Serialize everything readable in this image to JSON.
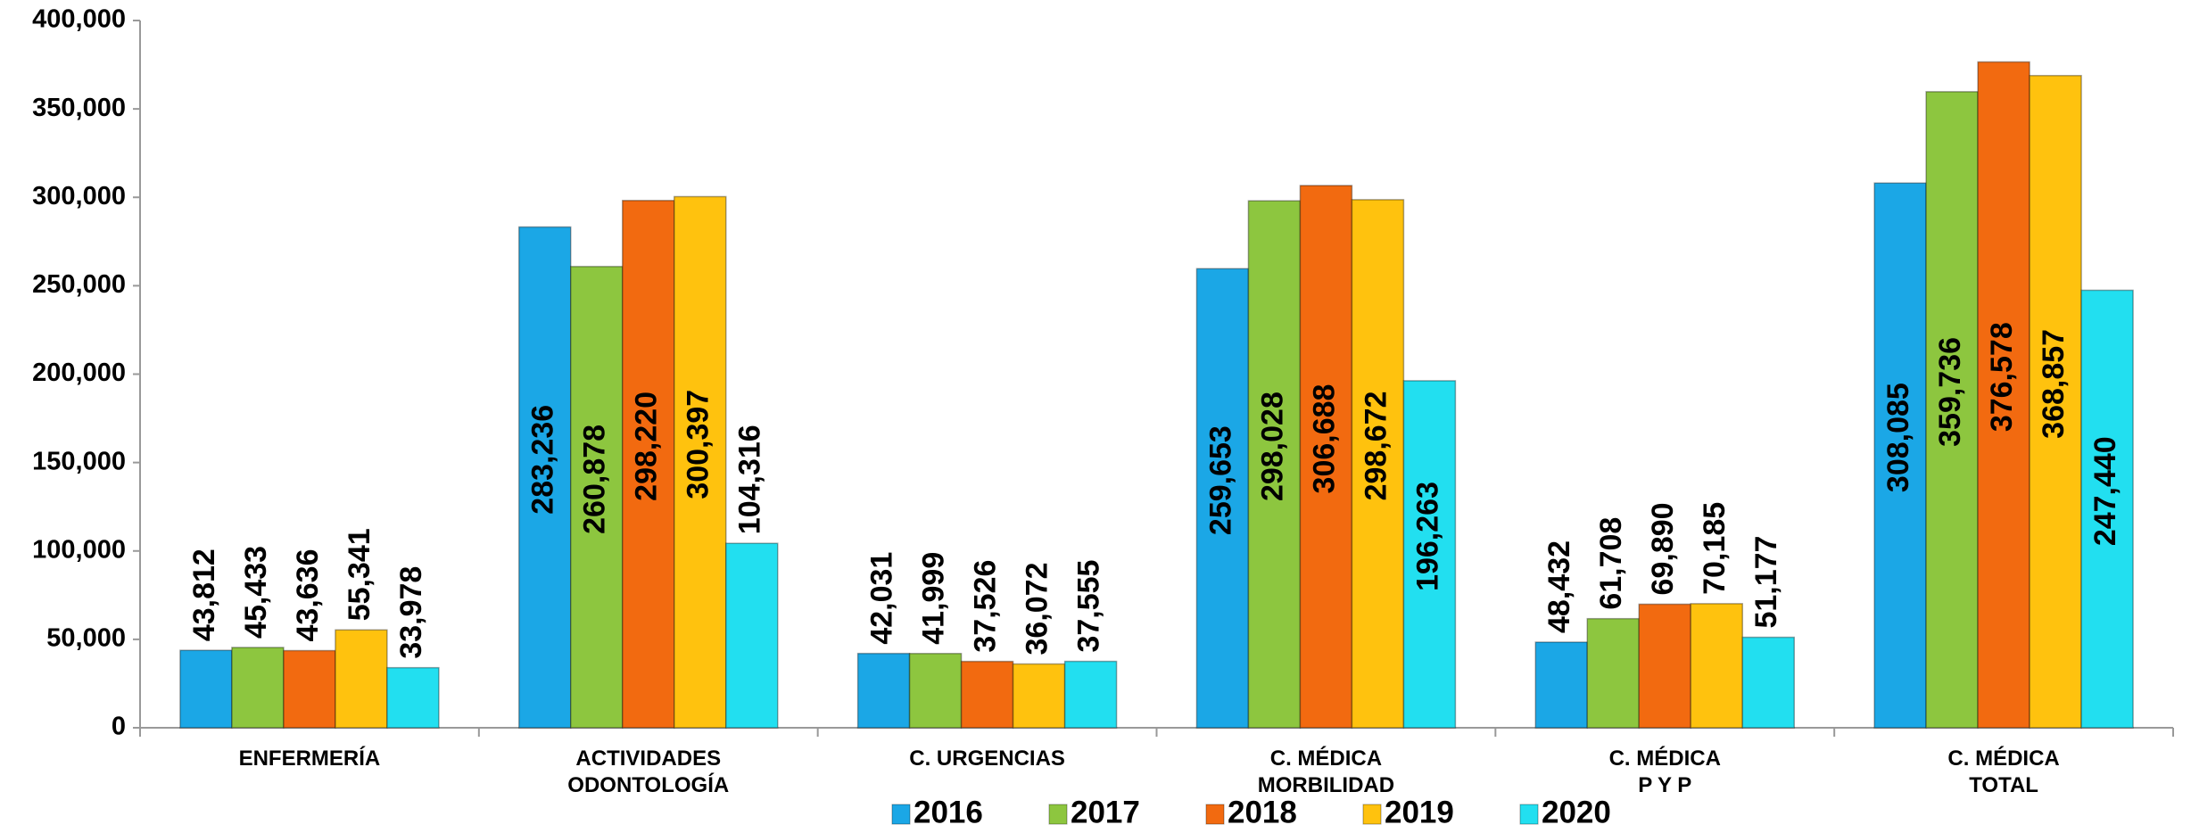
{
  "chart_data": {
    "type": "bar",
    "categories": [
      [
        "ENFERMERÍA"
      ],
      [
        "ACTIVIDADES",
        "ODONTOLOGÍA"
      ],
      [
        "C. URGENCIAS"
      ],
      [
        "C. MÉDICA",
        "MORBILIDAD"
      ],
      [
        "C. MÉDICA",
        "P Y P"
      ],
      [
        "C. MÉDICA",
        "TOTAL"
      ]
    ],
    "series": [
      {
        "name": "2016",
        "color": "#1ba7e6",
        "values": [
          43812,
          283236,
          42031,
          259653,
          48432,
          308085
        ],
        "value_labels": [
          "43,812",
          "283,236",
          "42,031",
          "259,653",
          "48,432",
          "308,085"
        ]
      },
      {
        "name": "2017",
        "color": "#8dc63f",
        "values": [
          45433,
          260878,
          41999,
          298028,
          61708,
          359736
        ],
        "value_labels": [
          "45,433",
          "260,878",
          "41,999",
          "298,028",
          "61,708",
          "359,736"
        ]
      },
      {
        "name": "2018",
        "color": "#f26a10",
        "values": [
          43636,
          298220,
          37526,
          306688,
          69890,
          376578
        ],
        "value_labels": [
          "43,636",
          "298,220",
          "37,526",
          "306,688",
          "69,890",
          "376,578"
        ]
      },
      {
        "name": "2019",
        "color": "#ffc20e",
        "values": [
          55341,
          300397,
          36072,
          298672,
          70185,
          368857
        ],
        "value_labels": [
          "55,341",
          "300,397",
          "36,072",
          "298,672",
          "70,185",
          "368,857"
        ]
      },
      {
        "name": "2020",
        "color": "#22dff0",
        "values": [
          33978,
          104316,
          37555,
          196263,
          51177,
          247440
        ],
        "value_labels": [
          "33,978",
          "104,316",
          "37,555",
          "196,263",
          "51,177",
          "247,440"
        ]
      }
    ],
    "ylim": [
      0,
      400000
    ],
    "yticks": [
      0,
      {
        "value": 50000,
        "label": "50,000"
      },
      {
        "value": 100000,
        "label": "100,000"
      },
      {
        "value": 150000,
        "label": "150,000"
      },
      {
        "value": 200000,
        "label": "200,000"
      },
      {
        "value": 250000,
        "label": "250,000"
      },
      {
        "value": 300000,
        "label": "300,000"
      },
      {
        "value": 350000,
        "label": "350,000"
      },
      {
        "value": 400000,
        "label": "400,000"
      }
    ],
    "grid": false,
    "legend": "bottom"
  }
}
